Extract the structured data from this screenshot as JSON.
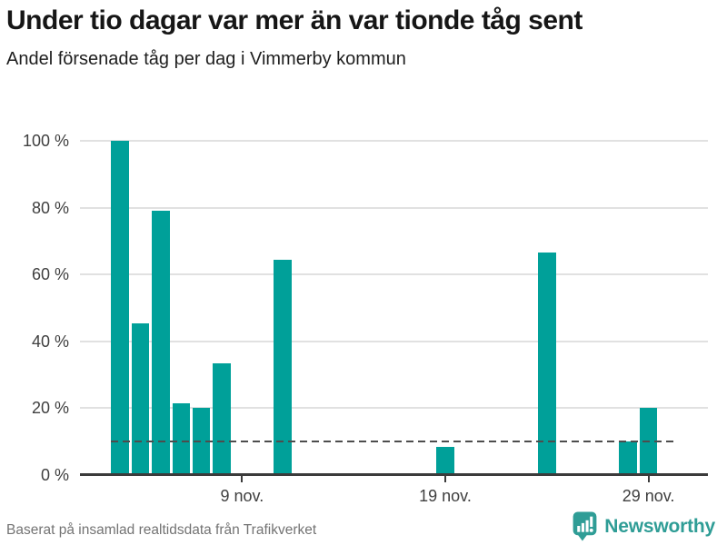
{
  "header": {
    "title": "Under tio dagar var mer än var tionde tåg sent",
    "subtitle": "Andel försenade tåg per dag i Vimmerby kommun"
  },
  "chart_data": {
    "type": "bar",
    "title": "Under tio dagar var mer än var tionde tåg sent",
    "subtitle": "Andel försenade tåg per dag i Vimmerby kommun",
    "unit": "%",
    "xlabel": "",
    "ylabel": "",
    "ylim": [
      0,
      100
    ],
    "x_domain": "1 nov. - 31 nov.",
    "categories": [
      "3 nov.",
      "4 nov.",
      "5 nov.",
      "6 nov.",
      "7 nov.",
      "8 nov.",
      "11 nov.",
      "19 nov.",
      "24 nov.",
      "28 nov.",
      "29 nov."
    ],
    "values": [
      100,
      45.5,
      79,
      21.5,
      20,
      33.5,
      64.3,
      8.3,
      66.5,
      10,
      20
    ],
    "bars": [
      {
        "day": 3,
        "value": 100
      },
      {
        "day": 4,
        "value": 45.5
      },
      {
        "day": 5,
        "value": 79
      },
      {
        "day": 6,
        "value": 21.5
      },
      {
        "day": 7,
        "value": 20
      },
      {
        "day": 8,
        "value": 33.5
      },
      {
        "day": 11,
        "value": 64.3
      },
      {
        "day": 19,
        "value": 8.3
      },
      {
        "day": 24,
        "value": 66.5
      },
      {
        "day": 28,
        "value": 10
      },
      {
        "day": 29,
        "value": 20
      }
    ],
    "yticks": [
      0,
      20,
      40,
      60,
      80,
      100
    ],
    "ytick_labels": [
      "0 %",
      "20 %",
      "40 %",
      "60 %",
      "80 %",
      "100 %"
    ],
    "xticks": [
      {
        "day": 9,
        "label": "9 nov."
      },
      {
        "day": 19,
        "label": "19 nov."
      },
      {
        "day": 29,
        "label": "29 nov."
      }
    ],
    "reference_line": {
      "value": 10,
      "style": "dashed"
    },
    "grid": "horizontal",
    "legend": "none"
  },
  "footer": {
    "source": "Baserat på insamlad realtidsdata från Trafikverket",
    "brand": "Newsworthy"
  },
  "colors": {
    "bar": "#00a099",
    "brand_teal": "#2f9d96",
    "grid": "#e1e1e1",
    "axis": "#3b3b3b",
    "reference_line": "#4d4d4d",
    "title_text": "#161616",
    "tick_text": "#3f3f3f",
    "source_text": "#737373"
  }
}
